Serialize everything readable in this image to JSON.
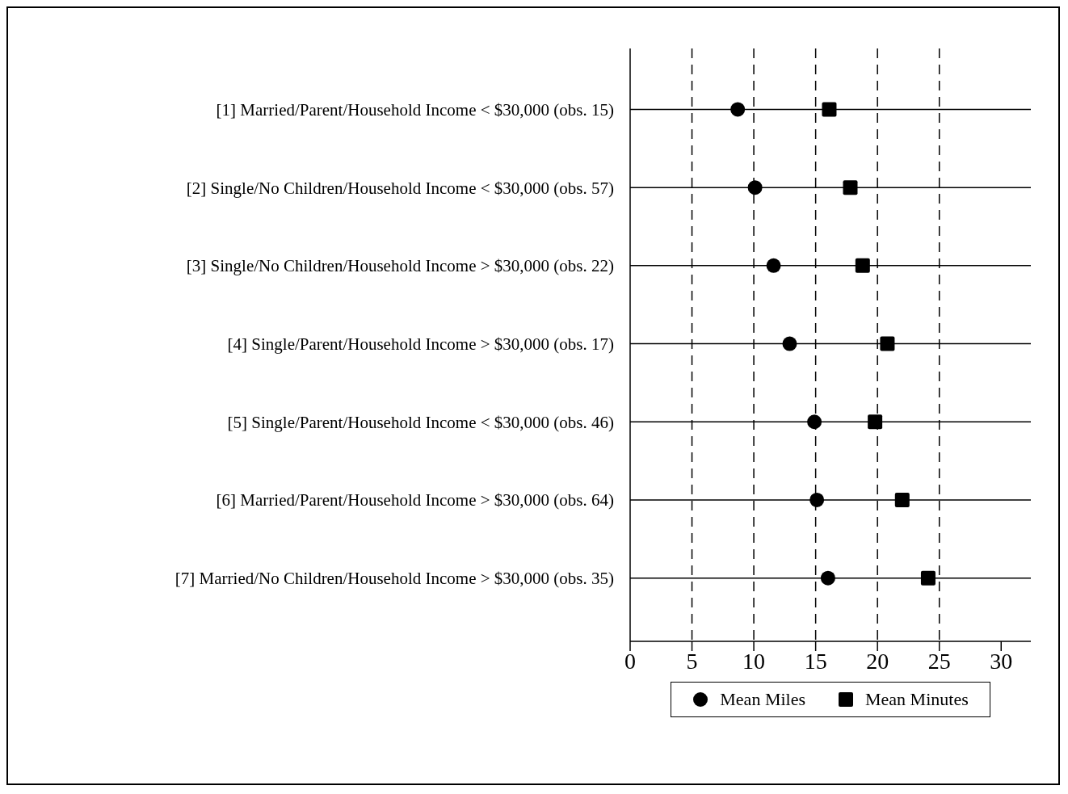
{
  "chart_data": {
    "type": "scatter",
    "categories": [
      "[1] Married/Parent/Household Income < $30,000 (obs. 15)",
      "[2] Single/No Children/Household Income < $30,000 (obs. 57)",
      "[3] Single/No Children/Household Income > $30,000 (obs. 22)",
      "[4] Single/Parent/Household Income > $30,000 (obs. 17)",
      "[5] Single/Parent/Household Income < $30,000 (obs. 46)",
      "[6] Married/Parent/Household Income > $30,000 (obs. 64)",
      "[7] Married/No Children/Household Income > $30,000 (obs. 35)"
    ],
    "orientation": "horizontal",
    "series": [
      {
        "name": "Mean Miles",
        "color": "#000000",
        "marker": "circle",
        "values": [
          8.7,
          10.1,
          11.6,
          12.9,
          14.9,
          15.1,
          16.0
        ]
      },
      {
        "name": "Mean Minutes",
        "color": "#000000",
        "marker": "square",
        "values": [
          16.1,
          17.8,
          18.8,
          20.8,
          19.8,
          22.0,
          24.1
        ]
      }
    ],
    "xlim": [
      0,
      32.4
    ],
    "xticks": [
      0,
      5,
      10,
      15,
      20,
      25,
      30
    ],
    "grid": true,
    "legend": "bottom"
  }
}
